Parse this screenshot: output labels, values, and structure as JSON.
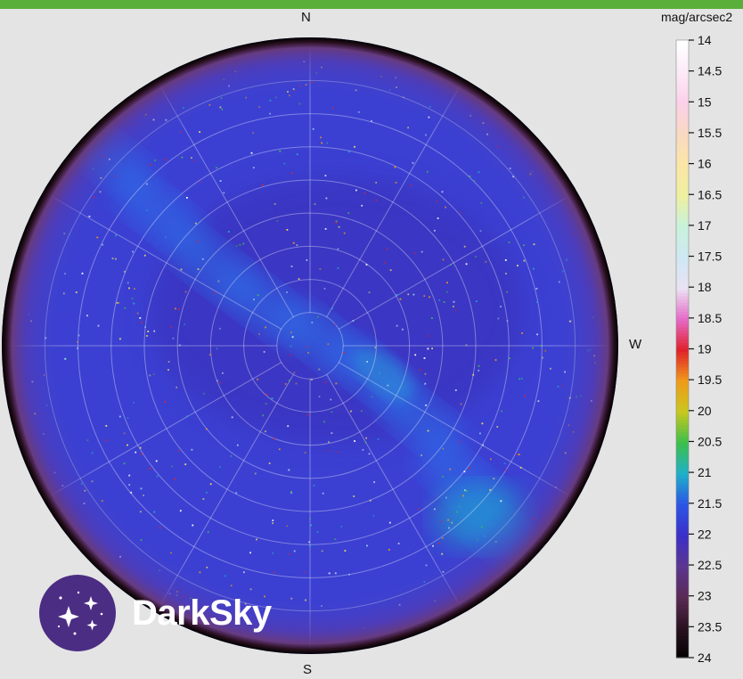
{
  "chart_data": {
    "type": "heatmap",
    "projection": "polar all-sky (fisheye), zenith at center",
    "directions": {
      "north": "N",
      "south": "S",
      "west": "W"
    },
    "colorbar": {
      "label": "mag/arcsec2",
      "range": [
        14,
        24
      ],
      "ticks": [
        "14",
        "14.5",
        "15",
        "15.5",
        "16",
        "16.5",
        "17",
        "17.5",
        "18",
        "18.5",
        "19",
        "19.5",
        "20",
        "20.5",
        "21",
        "21.5",
        "22",
        "22.5",
        "23",
        "23.5",
        "24"
      ],
      "stops": [
        {
          "v": 14,
          "color": "#ffffff"
        },
        {
          "v": 14.5,
          "color": "#fcebf7"
        },
        {
          "v": 15,
          "color": "#fbd0e8"
        },
        {
          "v": 15.5,
          "color": "#f9d9c2"
        },
        {
          "v": 16,
          "color": "#fbe6a6"
        },
        {
          "v": 16.5,
          "color": "#eef0a0"
        },
        {
          "v": 17,
          "color": "#c8f2dc"
        },
        {
          "v": 17.5,
          "color": "#cfe8f4"
        },
        {
          "v": 18,
          "color": "#eae2f2"
        },
        {
          "v": 18.5,
          "color": "#e56ac8"
        },
        {
          "v": 19,
          "color": "#e0212a"
        },
        {
          "v": 19.5,
          "color": "#f09a1a"
        },
        {
          "v": 20,
          "color": "#c8c81e"
        },
        {
          "v": 20.5,
          "color": "#3dbf4b"
        },
        {
          "v": 21,
          "color": "#1fb0c8"
        },
        {
          "v": 21.5,
          "color": "#2c55e6"
        },
        {
          "v": 22,
          "color": "#3a2fc8"
        },
        {
          "v": 22.5,
          "color": "#5c3690"
        },
        {
          "v": 23,
          "color": "#5a2a55"
        },
        {
          "v": 23.5,
          "color": "#2a1220"
        },
        {
          "v": 24,
          "color": "#000000"
        }
      ]
    },
    "sky": {
      "background_mag": 21.7,
      "horizon_mag": 23.5,
      "grid": true,
      "feature": "Milky Way band, NW to SE, brightest near S-W horizon (~21.0)"
    }
  },
  "logo": {
    "text": "DarkSky"
  }
}
